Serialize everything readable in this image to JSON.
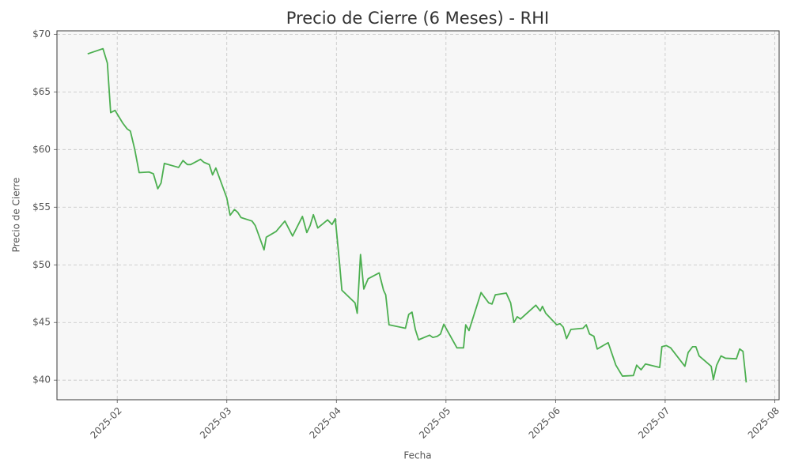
{
  "chart_data": {
    "type": "line",
    "title": "Precio de Cierre (6 Meses) - RHI",
    "x_label": "Fecha",
    "y_label": "Precio de Cierre",
    "grid": true,
    "xlim": [
      1.45,
      8.04
    ],
    "ylim": [
      38.3,
      70.3
    ],
    "xticks": [
      {
        "value": 2,
        "label": "2025-02"
      },
      {
        "value": 3,
        "label": "2025-03"
      },
      {
        "value": 4,
        "label": "2025-04"
      },
      {
        "value": 5,
        "label": "2025-05"
      },
      {
        "value": 6,
        "label": "2025-06"
      },
      {
        "value": 7,
        "label": "2025-07"
      },
      {
        "value": 8,
        "label": "2025-08"
      }
    ],
    "yticks": [
      {
        "value": 40,
        "label": "$40"
      },
      {
        "value": 45,
        "label": "$45"
      },
      {
        "value": 50,
        "label": "$50"
      },
      {
        "value": 55,
        "label": "$55"
      },
      {
        "value": 60,
        "label": "$60"
      },
      {
        "value": 65,
        "label": "$65"
      },
      {
        "value": 70,
        "label": "$70"
      }
    ],
    "series": [
      {
        "color": "#4caf50",
        "x": [
          1.73,
          1.87,
          1.91,
          1.94,
          1.98,
          2.05,
          2.09,
          2.12,
          2.16,
          2.2,
          2.29,
          2.33,
          2.37,
          2.4,
          2.43,
          2.56,
          2.6,
          2.64,
          2.67,
          2.76,
          2.79,
          2.84,
          2.87,
          2.9,
          3.0,
          3.03,
          3.07,
          3.1,
          3.13,
          3.23,
          3.26,
          3.34,
          3.36,
          3.45,
          3.53,
          3.6,
          3.69,
          3.73,
          3.76,
          3.79,
          3.83,
          3.92,
          3.96,
          3.99,
          4.03,
          4.05,
          4.17,
          4.19,
          4.22,
          4.25,
          4.29,
          4.39,
          4.43,
          4.45,
          4.48,
          4.63,
          4.66,
          4.69,
          4.72,
          4.75,
          4.85,
          4.88,
          4.92,
          4.95,
          4.98,
          5.1,
          5.16,
          5.18,
          5.21,
          5.32,
          5.39,
          5.42,
          5.45,
          5.55,
          5.59,
          5.62,
          5.65,
          5.68,
          5.82,
          5.86,
          5.88,
          5.91,
          6.01,
          6.04,
          6.07,
          6.1,
          6.14,
          6.25,
          6.28,
          6.31,
          6.35,
          6.38,
          6.48,
          6.55,
          6.61,
          6.71,
          6.74,
          6.78,
          6.82,
          6.95,
          6.97,
          7.01,
          7.05,
          7.18,
          7.21,
          7.25,
          7.28,
          7.31,
          7.42,
          7.44,
          7.47,
          7.51,
          7.55,
          7.65,
          7.68,
          7.71,
          7.74
        ],
        "values": [
          68.3,
          68.75,
          67.5,
          63.2,
          63.4,
          62.3,
          61.8,
          61.6,
          60.0,
          58.0,
          58.05,
          57.9,
          56.6,
          57.1,
          58.8,
          58.45,
          59.05,
          58.7,
          58.7,
          59.15,
          58.9,
          58.7,
          57.8,
          58.4,
          55.8,
          54.3,
          54.8,
          54.55,
          54.1,
          53.8,
          53.4,
          51.3,
          52.4,
          52.9,
          53.8,
          52.5,
          54.2,
          52.8,
          53.4,
          54.35,
          53.2,
          53.9,
          53.5,
          54.0,
          50.0,
          47.8,
          46.7,
          45.8,
          50.9,
          47.9,
          48.8,
          49.3,
          47.8,
          47.4,
          44.8,
          44.5,
          45.7,
          45.9,
          44.4,
          43.5,
          43.9,
          43.7,
          43.8,
          44.0,
          44.85,
          42.8,
          42.8,
          44.8,
          44.3,
          47.6,
          46.7,
          46.6,
          47.4,
          47.55,
          46.7,
          45.0,
          45.5,
          45.3,
          46.5,
          46.0,
          46.4,
          45.8,
          44.8,
          44.9,
          44.6,
          43.6,
          44.4,
          44.5,
          44.8,
          44.0,
          43.8,
          42.7,
          43.25,
          41.3,
          40.35,
          40.4,
          41.3,
          40.9,
          41.4,
          41.1,
          42.9,
          43.0,
          42.8,
          41.2,
          42.4,
          42.9,
          42.9,
          42.1,
          41.2,
          40.05,
          41.3,
          42.1,
          41.9,
          41.85,
          42.7,
          42.5,
          39.8
        ]
      }
    ]
  }
}
